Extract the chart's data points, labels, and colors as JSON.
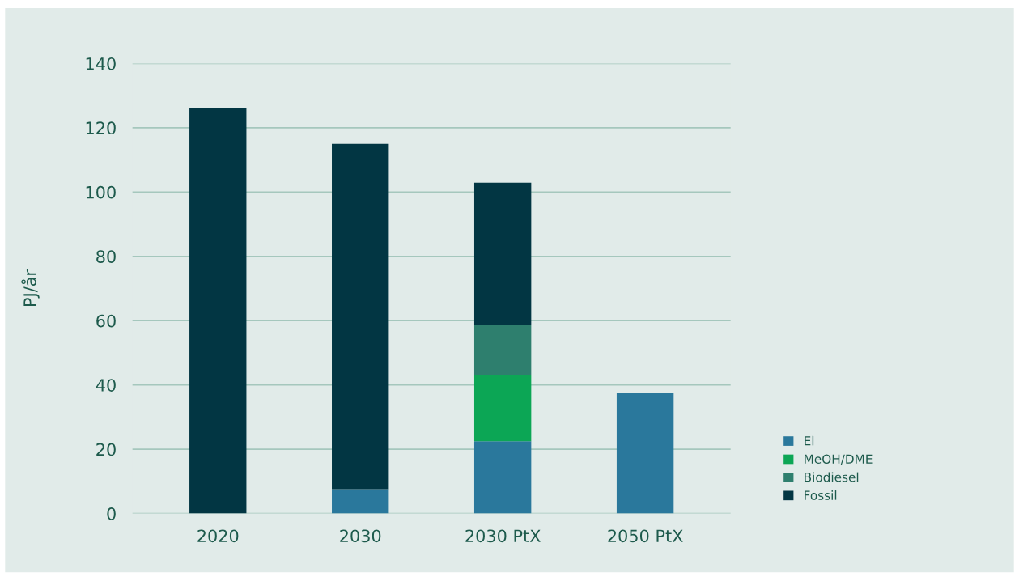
{
  "chart_data": {
    "type": "bar",
    "ylabel": "PJ/år",
    "categories": [
      "2020",
      "2030",
      "2030 PtX",
      "2050 PtX"
    ],
    "stacked": true,
    "series": [
      {
        "name": "El",
        "color": "#2a789c",
        "values": [
          0,
          7.6,
          22.5,
          37.4
        ]
      },
      {
        "name": "MeOH/DME",
        "color": "#0ca655",
        "values": [
          0,
          0,
          20.7,
          0
        ]
      },
      {
        "name": "Biodiesel",
        "color": "#2e7f6e",
        "values": [
          0,
          0,
          15.4,
          0
        ]
      },
      {
        "name": "Fossil",
        "color": "#023643",
        "values": [
          126,
          107.4,
          44.3,
          0
        ]
      }
    ],
    "ylim": [
      0,
      140
    ],
    "yticks": [
      0,
      20,
      40,
      60,
      80,
      100,
      120,
      140
    ],
    "grid": "y",
    "legend": "right"
  }
}
